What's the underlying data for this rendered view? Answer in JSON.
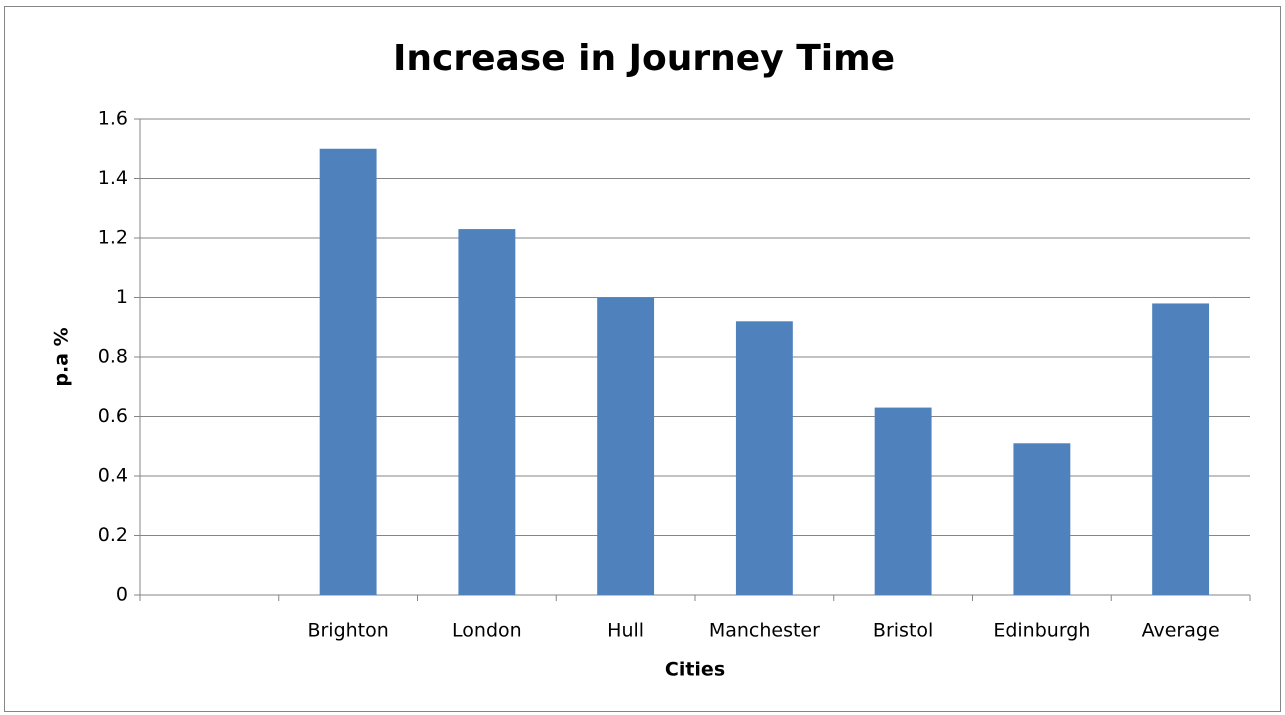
{
  "chart_data": {
    "type": "bar",
    "title": "Increase in Journey Time",
    "x_label": "Cities",
    "y_label": "p.a %",
    "categories": [
      null,
      "Brighton",
      "London",
      "Hull",
      "Manchester",
      "Bristol",
      "Edinburgh",
      "Average"
    ],
    "values": [
      null,
      1.5,
      1.23,
      1.0,
      0.92,
      0.63,
      0.51,
      0.98
    ],
    "color": "#4f81bd",
    "ylim": [
      0,
      1.6
    ],
    "yticks": [
      0,
      0.2,
      0.4,
      0.6,
      0.8,
      1,
      1.2,
      1.4,
      1.6
    ],
    "grid": true
  }
}
